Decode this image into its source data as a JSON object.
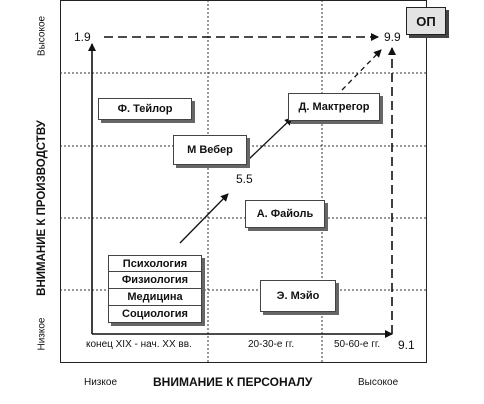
{
  "corner_badge": "ОП",
  "y_axis": {
    "title": "ВНИМАНИЕ К ПРОИЗВОДСТВУ",
    "high_label": "Высокое",
    "low_label": "Низкое"
  },
  "x_axis": {
    "title": "ВНИМАНИЕ К ПЕРСОНАЛУ",
    "low_label": "Низкое",
    "high_label": "Высокое",
    "periods": [
      "конец XIX - нач. XX вв.",
      "20-30-е гг.",
      "50-60-е гг."
    ]
  },
  "points": {
    "top_left": "1.9",
    "top_right": "9.9",
    "middle": "5.5",
    "bottom_right": "9.1"
  },
  "boxes": {
    "taylor": "Ф. Тейлор",
    "weber": "М Вебер",
    "mcgregor": "Д. Мактрегор",
    "fayol": "А. Файоль",
    "mayo": "Э. Мэйо"
  },
  "sciences": [
    "Психология",
    "Физиология",
    "Медицина",
    "Социология"
  ]
}
